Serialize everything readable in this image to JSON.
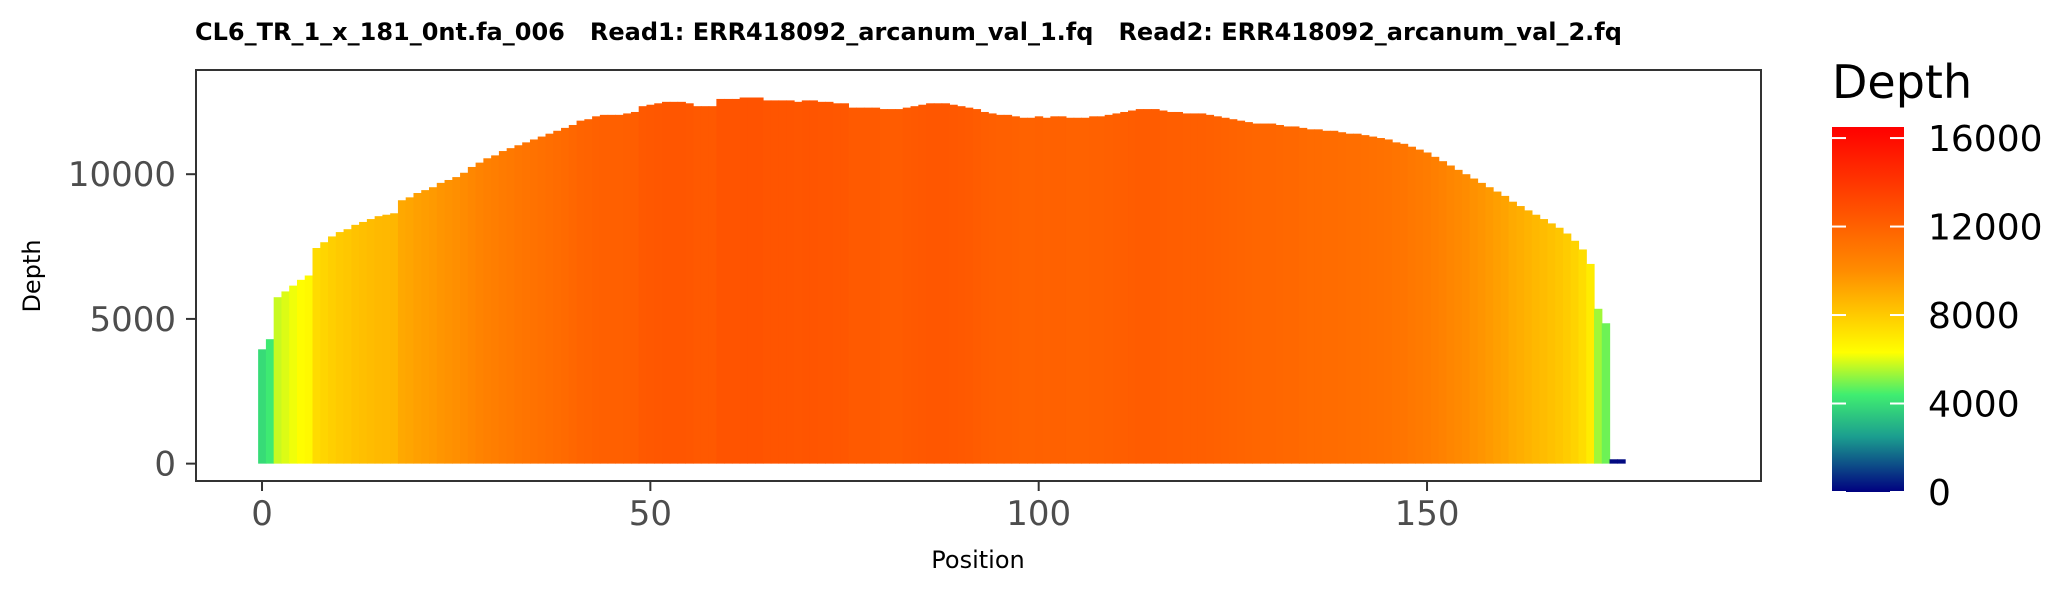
{
  "chart_data": {
    "type": "bar",
    "title": "CL6_TR_1_x_181_0nt.fa_006   Read1: ERR418092_arcanum_val_1.fq   Read2: ERR418092_arcanum_val_2.fq",
    "xlabel": "Position",
    "ylabel": "Depth",
    "xlim": [
      -8.5,
      193
    ],
    "ylim": [
      -600,
      13600
    ],
    "x_ticks": [
      0,
      50,
      100,
      150
    ],
    "x_tick_labels": [
      "0",
      "50",
      "100",
      "150"
    ],
    "y_ticks": [
      0,
      5000,
      10000
    ],
    "y_tick_labels": [
      "0",
      "5000",
      "10000"
    ],
    "grid": false,
    "legend": {
      "title": "Depth",
      "placement": "right",
      "min": 0,
      "max": 16500,
      "ticks": [
        0,
        4000,
        8000,
        12000,
        16000
      ],
      "tick_labels": [
        "0",
        "4000",
        "8000",
        "12000",
        "16000"
      ],
      "colormap": [
        {
          "value": 0,
          "color": "#000080"
        },
        {
          "value": 2500,
          "color": "#1b9e8f"
        },
        {
          "value": 4400,
          "color": "#40ee70"
        },
        {
          "value": 6300,
          "color": "#ffff00"
        },
        {
          "value": 10000,
          "color": "#ff8c00"
        },
        {
          "value": 16500,
          "color": "#ff0000"
        }
      ]
    },
    "positions": [
      0,
      1,
      2,
      3,
      4,
      5,
      6,
      7,
      8,
      9,
      10,
      11,
      12,
      13,
      14,
      15,
      16,
      17,
      18,
      19,
      20,
      21,
      22,
      23,
      24,
      25,
      26,
      27,
      28,
      29,
      30,
      31,
      32,
      33,
      34,
      35,
      36,
      37,
      38,
      39,
      40,
      41,
      42,
      43,
      44,
      45,
      46,
      47,
      48,
      49,
      50,
      51,
      52,
      53,
      54,
      55,
      56,
      57,
      58,
      59,
      60,
      61,
      62,
      63,
      64,
      65,
      66,
      67,
      68,
      69,
      70,
      71,
      72,
      73,
      74,
      75,
      76,
      77,
      78,
      79,
      80,
      81,
      82,
      83,
      84,
      85,
      86,
      87,
      88,
      89,
      90,
      91,
      92,
      93,
      94,
      95,
      96,
      97,
      98,
      99,
      100,
      101,
      102,
      103,
      104,
      105,
      106,
      107,
      108,
      109,
      110,
      111,
      112,
      113,
      114,
      115,
      116,
      117,
      118,
      119,
      120,
      121,
      122,
      123,
      124,
      125,
      126,
      127,
      128,
      129,
      130,
      131,
      132,
      133,
      134,
      135,
      136,
      137,
      138,
      139,
      140,
      141,
      142,
      143,
      144,
      145,
      146,
      147,
      148,
      149,
      150,
      151,
      152,
      153,
      154,
      155,
      156,
      157,
      158,
      159,
      160,
      161,
      162,
      163,
      164,
      165,
      166,
      167,
      168,
      169,
      170,
      171,
      172,
      173,
      174,
      175,
      176,
      177,
      178,
      179,
      180,
      181,
      182,
      183
    ],
    "values": [
      3950,
      4300,
      5750,
      5950,
      6150,
      6350,
      6500,
      7450,
      7650,
      7850,
      8000,
      8100,
      8250,
      8350,
      8450,
      8550,
      8600,
      8650,
      9100,
      9200,
      9350,
      9450,
      9550,
      9700,
      9800,
      9900,
      10050,
      10250,
      10400,
      10550,
      10650,
      10800,
      10900,
      11000,
      11100,
      11200,
      11300,
      11400,
      11500,
      11600,
      11700,
      11850,
      11900,
      12000,
      12050,
      12050,
      12050,
      12100,
      12150,
      12350,
      12400,
      12450,
      12500,
      12500,
      12500,
      12450,
      12350,
      12350,
      12350,
      12600,
      12600,
      12600,
      12650,
      12650,
      12650,
      12550,
      12550,
      12550,
      12550,
      12500,
      12550,
      12550,
      12500,
      12500,
      12450,
      12450,
      12300,
      12300,
      12300,
      12300,
      12250,
      12250,
      12250,
      12300,
      12350,
      12400,
      12450,
      12450,
      12450,
      12400,
      12350,
      12300,
      12250,
      12150,
      12100,
      12050,
      12050,
      12000,
      11950,
      11950,
      12000,
      11950,
      12000,
      12000,
      11950,
      11950,
      11950,
      12000,
      12000,
      12050,
      12100,
      12150,
      12200,
      12250,
      12250,
      12250,
      12200,
      12150,
      12150,
      12100,
      12100,
      12100,
      12050,
      12000,
      11950,
      11900,
      11850,
      11800,
      11750,
      11750,
      11750,
      11700,
      11650,
      11650,
      11600,
      11550,
      11550,
      11500,
      11500,
      11450,
      11400,
      11400,
      11350,
      11300,
      11250,
      11200,
      11100,
      11050,
      10950,
      10850,
      10750,
      10600,
      10450,
      10300,
      10150,
      10000,
      9850,
      9700,
      9550,
      9400,
      9250,
      9050,
      8900,
      8750,
      8600,
      8450,
      8300,
      8150,
      7950,
      7700,
      7400,
      6900,
      5350,
      4850,
      150,
      150
    ]
  }
}
